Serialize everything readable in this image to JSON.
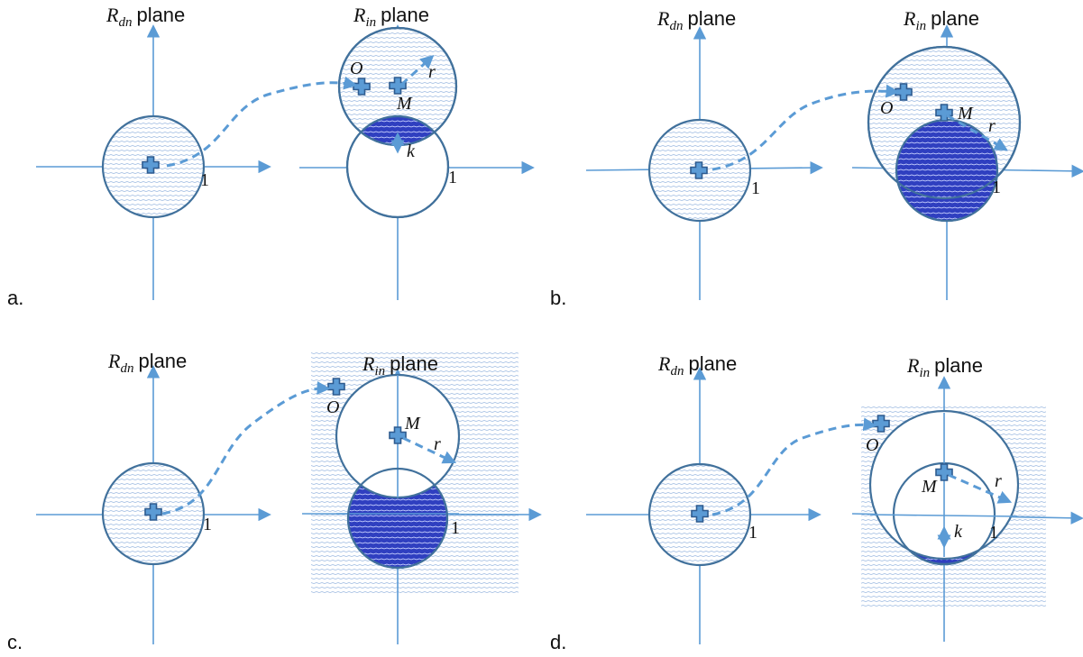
{
  "panels": {
    "a": {
      "label": "a.",
      "left_plane": {
        "var": "R",
        "sub": "dn",
        "word": "plane"
      },
      "right_plane": {
        "var": "R",
        "sub": "in",
        "word": "plane"
      },
      "unit_left": "1",
      "unit_right": "1",
      "O": "O",
      "M": "M",
      "r": "r",
      "k": "k"
    },
    "b": {
      "label": "b.",
      "left_plane": {
        "var": "R",
        "sub": "dn",
        "word": "plane"
      },
      "right_plane": {
        "var": "R",
        "sub": "in",
        "word": "plane"
      },
      "unit_left": "1",
      "unit_right": "1",
      "O": "O",
      "M": "M",
      "r": "r"
    },
    "c": {
      "label": "c.",
      "left_plane": {
        "var": "R",
        "sub": "dn",
        "word": "plane"
      },
      "right_plane": {
        "var": "R",
        "sub": "in",
        "word": "plane"
      },
      "unit_left": "1",
      "unit_right": "1",
      "O": "O",
      "M": "M",
      "r": "r"
    },
    "d": {
      "label": "d.",
      "left_plane": {
        "var": "R",
        "sub": "dn",
        "word": "plane"
      },
      "right_plane": {
        "var": "R",
        "sub": "in",
        "word": "plane"
      },
      "unit_left": "1",
      "unit_right": "1",
      "O": "O",
      "M": "M",
      "r": "r",
      "k": "k"
    }
  },
  "colors": {
    "axis": "#5b9bd5",
    "circle_stroke": "#41719c",
    "hatch_light": "#a9c4e6",
    "dark_fill": "#2f3fc0"
  }
}
